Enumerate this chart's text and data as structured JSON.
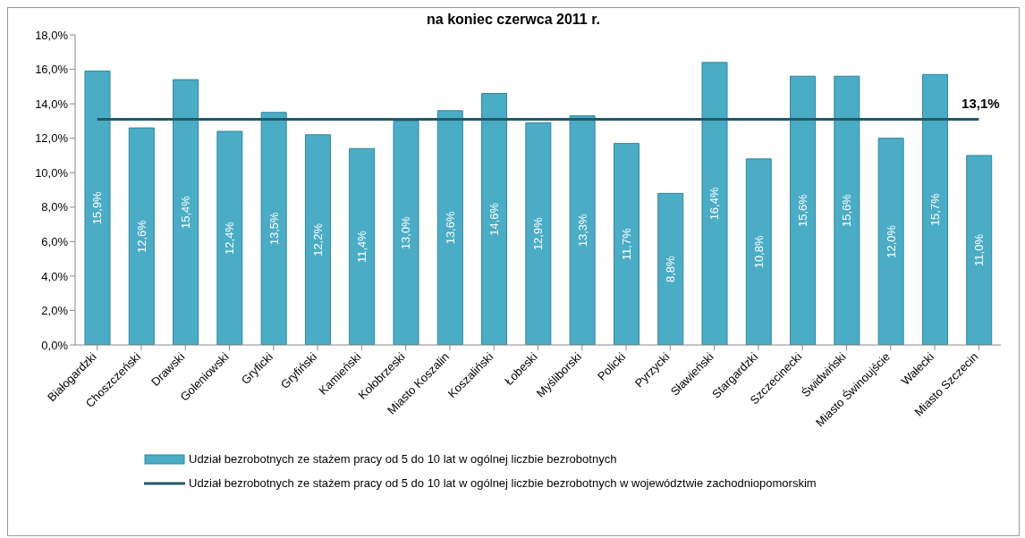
{
  "chart_data": {
    "type": "bar",
    "title": "na koniec czerwca 2011 r.",
    "categories": [
      "Białogardzki",
      "Choszczeński",
      "Drawski",
      "Goleniowski",
      "Gryficki",
      "Gryfiński",
      "Kamieński",
      "Kołobrzeski",
      "Miasto Koszalin",
      "Koszaliński",
      "Łobeski",
      "Myśliborski",
      "Policki",
      "Pyrzycki",
      "Sławieński",
      "Stargardzki",
      "Szczecinecki",
      "Świdwiński",
      "Miasto Świnoujście",
      "Wałecki",
      "Miasto Szczecin"
    ],
    "series": [
      {
        "name": "Udział bezrobotnych ze stażem pracy od 5 do 10 lat w ogólnej liczbie bezrobotnych",
        "color": "#4bacc6",
        "values": [
          15.9,
          12.6,
          15.4,
          12.4,
          13.5,
          12.2,
          11.4,
          13.0,
          13.6,
          14.6,
          12.9,
          13.3,
          11.7,
          8.8,
          16.4,
          10.8,
          15.6,
          15.6,
          12.0,
          15.7,
          11.0
        ],
        "value_labels": [
          "15,9%",
          "12,6%",
          "15,4%",
          "12,4%",
          "13,5%",
          "12,2%",
          "11,4%",
          "13,0%",
          "13,6%",
          "14,6%",
          "12,9%",
          "13,3%",
          "11,7%",
          "8,8%",
          "16,4%",
          "10,8%",
          "15,6%",
          "15,6%",
          "12,0%",
          "15,7%",
          "11,0%"
        ]
      },
      {
        "type": "line",
        "name": "Udział bezrobotnych ze stażem pracy od 5 do 10 lat w ogólnej liczbie bezrobotnych w województwie zachodniopomorskim",
        "color": "#215968",
        "values": [
          13.1,
          13.1,
          13.1,
          13.1,
          13.1,
          13.1,
          13.1,
          13.1,
          13.1,
          13.1,
          13.1,
          13.1,
          13.1,
          13.1,
          13.1,
          13.1,
          13.1,
          13.1,
          13.1,
          13.1,
          13.1
        ],
        "value_labels": [
          null,
          null,
          null,
          null,
          null,
          null,
          null,
          null,
          null,
          null,
          null,
          null,
          null,
          null,
          null,
          null,
          null,
          null,
          null,
          null,
          "13,1%"
        ]
      }
    ],
    "ylim": [
      0,
      18
    ],
    "yticks": [
      {
        "value": 0,
        "label": "0,0%"
      },
      {
        "value": 2,
        "label": "2,0%"
      },
      {
        "value": 4,
        "label": "4,0%"
      },
      {
        "value": 6,
        "label": "6,0%"
      },
      {
        "value": 8,
        "label": "8,0%"
      },
      {
        "value": 10,
        "label": "10,0%"
      },
      {
        "value": 12,
        "label": "12,0%"
      },
      {
        "value": 14,
        "label": "14,0%"
      },
      {
        "value": 16,
        "label": "16,0%"
      },
      {
        "value": 18,
        "label": "18,0%"
      }
    ],
    "legend": "bottom"
  }
}
